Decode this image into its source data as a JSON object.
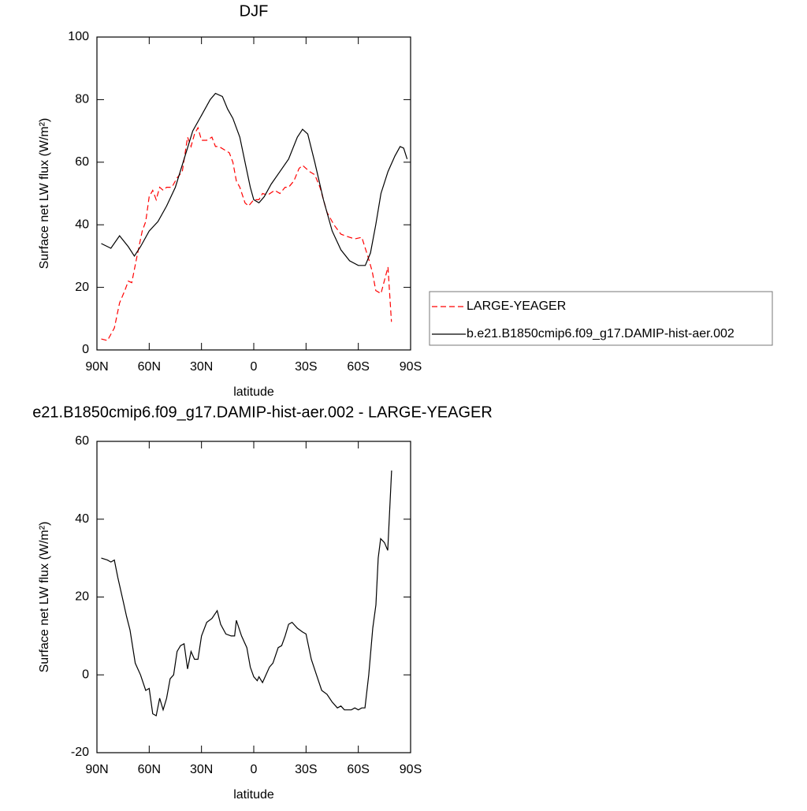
{
  "chart_data": [
    {
      "type": "line",
      "title": "DJF",
      "x_label": "latitude",
      "y_label": "Surface net LW flux (W/m²)",
      "xlim": [
        90,
        -90
      ],
      "ylim": [
        0,
        100
      ],
      "xticks": [
        {
          "value": 90,
          "label": "90N"
        },
        {
          "value": 60,
          "label": "60N"
        },
        {
          "value": 30,
          "label": "30N"
        },
        0,
        {
          "value": -30,
          "label": "30S"
        },
        {
          "value": -60,
          "label": "60S"
        },
        {
          "value": -90,
          "label": "90S"
        }
      ],
      "yticks": [
        0,
        20,
        40,
        60,
        80,
        100
      ],
      "legend": "right",
      "series": [
        {
          "name": "LARGE-YEAGER",
          "color": "#ff0000",
          "dash": true,
          "x": [
            87.5,
            84,
            80,
            77,
            74,
            72,
            70,
            67,
            64,
            62,
            60,
            58,
            56,
            54,
            52,
            50,
            47,
            44,
            41,
            38,
            36,
            34,
            32,
            30,
            27,
            24,
            22,
            20,
            17,
            14,
            12,
            10,
            8,
            5,
            3,
            0,
            -3,
            -5,
            -8,
            -12,
            -15,
            -18,
            -20,
            -23,
            -26,
            -28,
            -30,
            -32,
            -35,
            -38,
            -42,
            -46,
            -50,
            -55,
            -58,
            -62,
            -66,
            -68,
            -70,
            -73,
            -77,
            -79
          ],
          "values": [
            3.5,
            3,
            7,
            15,
            19,
            22,
            21.5,
            30,
            38,
            41,
            49,
            51,
            48,
            52,
            51,
            52,
            52,
            55,
            57,
            68,
            65,
            69,
            71,
            67,
            67,
            68,
            65,
            65,
            64,
            63,
            60,
            54,
            52,
            47,
            46,
            48,
            48,
            50,
            49.5,
            51,
            50,
            52,
            52,
            54,
            58,
            59,
            58,
            57,
            56,
            52,
            44,
            40,
            37,
            36,
            35.5,
            36,
            29,
            25,
            19,
            18,
            26.5,
            9
          ]
        },
        {
          "name": "b.e21.B1850cmip6.f09_g17.DAMIP-hist-aer.002",
          "color": "#000000",
          "dash": false,
          "x": [
            87.5,
            82,
            77,
            72,
            68.5,
            65,
            60,
            55,
            50,
            45,
            40,
            35,
            30,
            25,
            22,
            18,
            15,
            12,
            8,
            5,
            2,
            0,
            -3,
            -6,
            -10,
            -15,
            -20,
            -25,
            -28,
            -31,
            -35,
            -40,
            -45,
            -50,
            -55,
            -60,
            -64,
            -67,
            -70,
            -73,
            -77,
            -81,
            -84,
            -86,
            -88
          ],
          "values": [
            34,
            32.5,
            36.5,
            33,
            30,
            33,
            38,
            41,
            46,
            52,
            61,
            70,
            75,
            80,
            82,
            81,
            77,
            74,
            68,
            60,
            52,
            48,
            47,
            49,
            53,
            57,
            61,
            68,
            70.5,
            69,
            60,
            48,
            38,
            32,
            28.5,
            27,
            27,
            31,
            40,
            50,
            57,
            62,
            65,
            64.5,
            61
          ]
        }
      ]
    },
    {
      "type": "line",
      "title": "e21.B1850cmip6.f09_g17.DAMIP-hist-aer.002 - LARGE-YEAGER",
      "x_label": "latitude",
      "y_label": "Surface net LW flux (W/m²)",
      "xlim": [
        90,
        -90
      ],
      "ylim": [
        -20,
        60
      ],
      "xticks": [
        {
          "value": 90,
          "label": "90N"
        },
        {
          "value": 60,
          "label": "60N"
        },
        {
          "value": 30,
          "label": "30N"
        },
        0,
        {
          "value": -30,
          "label": "30S"
        },
        {
          "value": -60,
          "label": "60S"
        },
        {
          "value": -90,
          "label": "90S"
        }
      ],
      "yticks": [
        -20,
        0,
        20,
        40,
        60
      ],
      "series": [
        {
          "color": "#000000",
          "dash": false,
          "x": [
            87.5,
            84,
            82,
            80,
            78,
            75,
            73,
            71,
            68,
            65,
            62,
            60,
            58,
            56,
            54,
            52,
            50,
            48,
            46,
            44,
            42,
            40,
            38,
            36,
            34,
            32,
            30,
            27,
            24,
            21,
            19,
            16,
            13,
            11,
            10,
            7,
            4,
            2,
            0,
            -2,
            -3,
            -5,
            -7,
            -9,
            -11,
            -14,
            -16,
            -18,
            -20,
            -22,
            -25,
            -28,
            -30,
            -33,
            -36,
            -39,
            -42,
            -45,
            -48,
            -50,
            -52,
            -56,
            -58,
            -60,
            -62,
            -63.8,
            -66,
            -68.3,
            -70.1,
            -71.4,
            -72.8,
            -75,
            -76.9,
            -79.1
          ],
          "values": [
            30,
            29.5,
            29,
            29.5,
            25,
            19,
            15,
            11.5,
            3,
            0,
            -4,
            -3.5,
            -10,
            -10.5,
            -6,
            -9,
            -6,
            -1,
            0,
            6,
            7.5,
            8,
            1.5,
            6,
            4,
            4,
            10,
            13.5,
            14.5,
            16.5,
            13,
            10.5,
            10,
            10,
            14,
            10,
            7,
            2,
            -0.5,
            -1.5,
            -0.5,
            -2,
            0,
            2,
            3,
            7,
            7.5,
            10,
            13,
            13.5,
            12,
            11,
            10.5,
            4,
            0,
            -4,
            -5,
            -7,
            -8.5,
            -8,
            -9,
            -9,
            -8.5,
            -9,
            -8.5,
            -8.5,
            0,
            12,
            18,
            30,
            35,
            34,
            32,
            52.5
          ]
        }
      ]
    }
  ]
}
